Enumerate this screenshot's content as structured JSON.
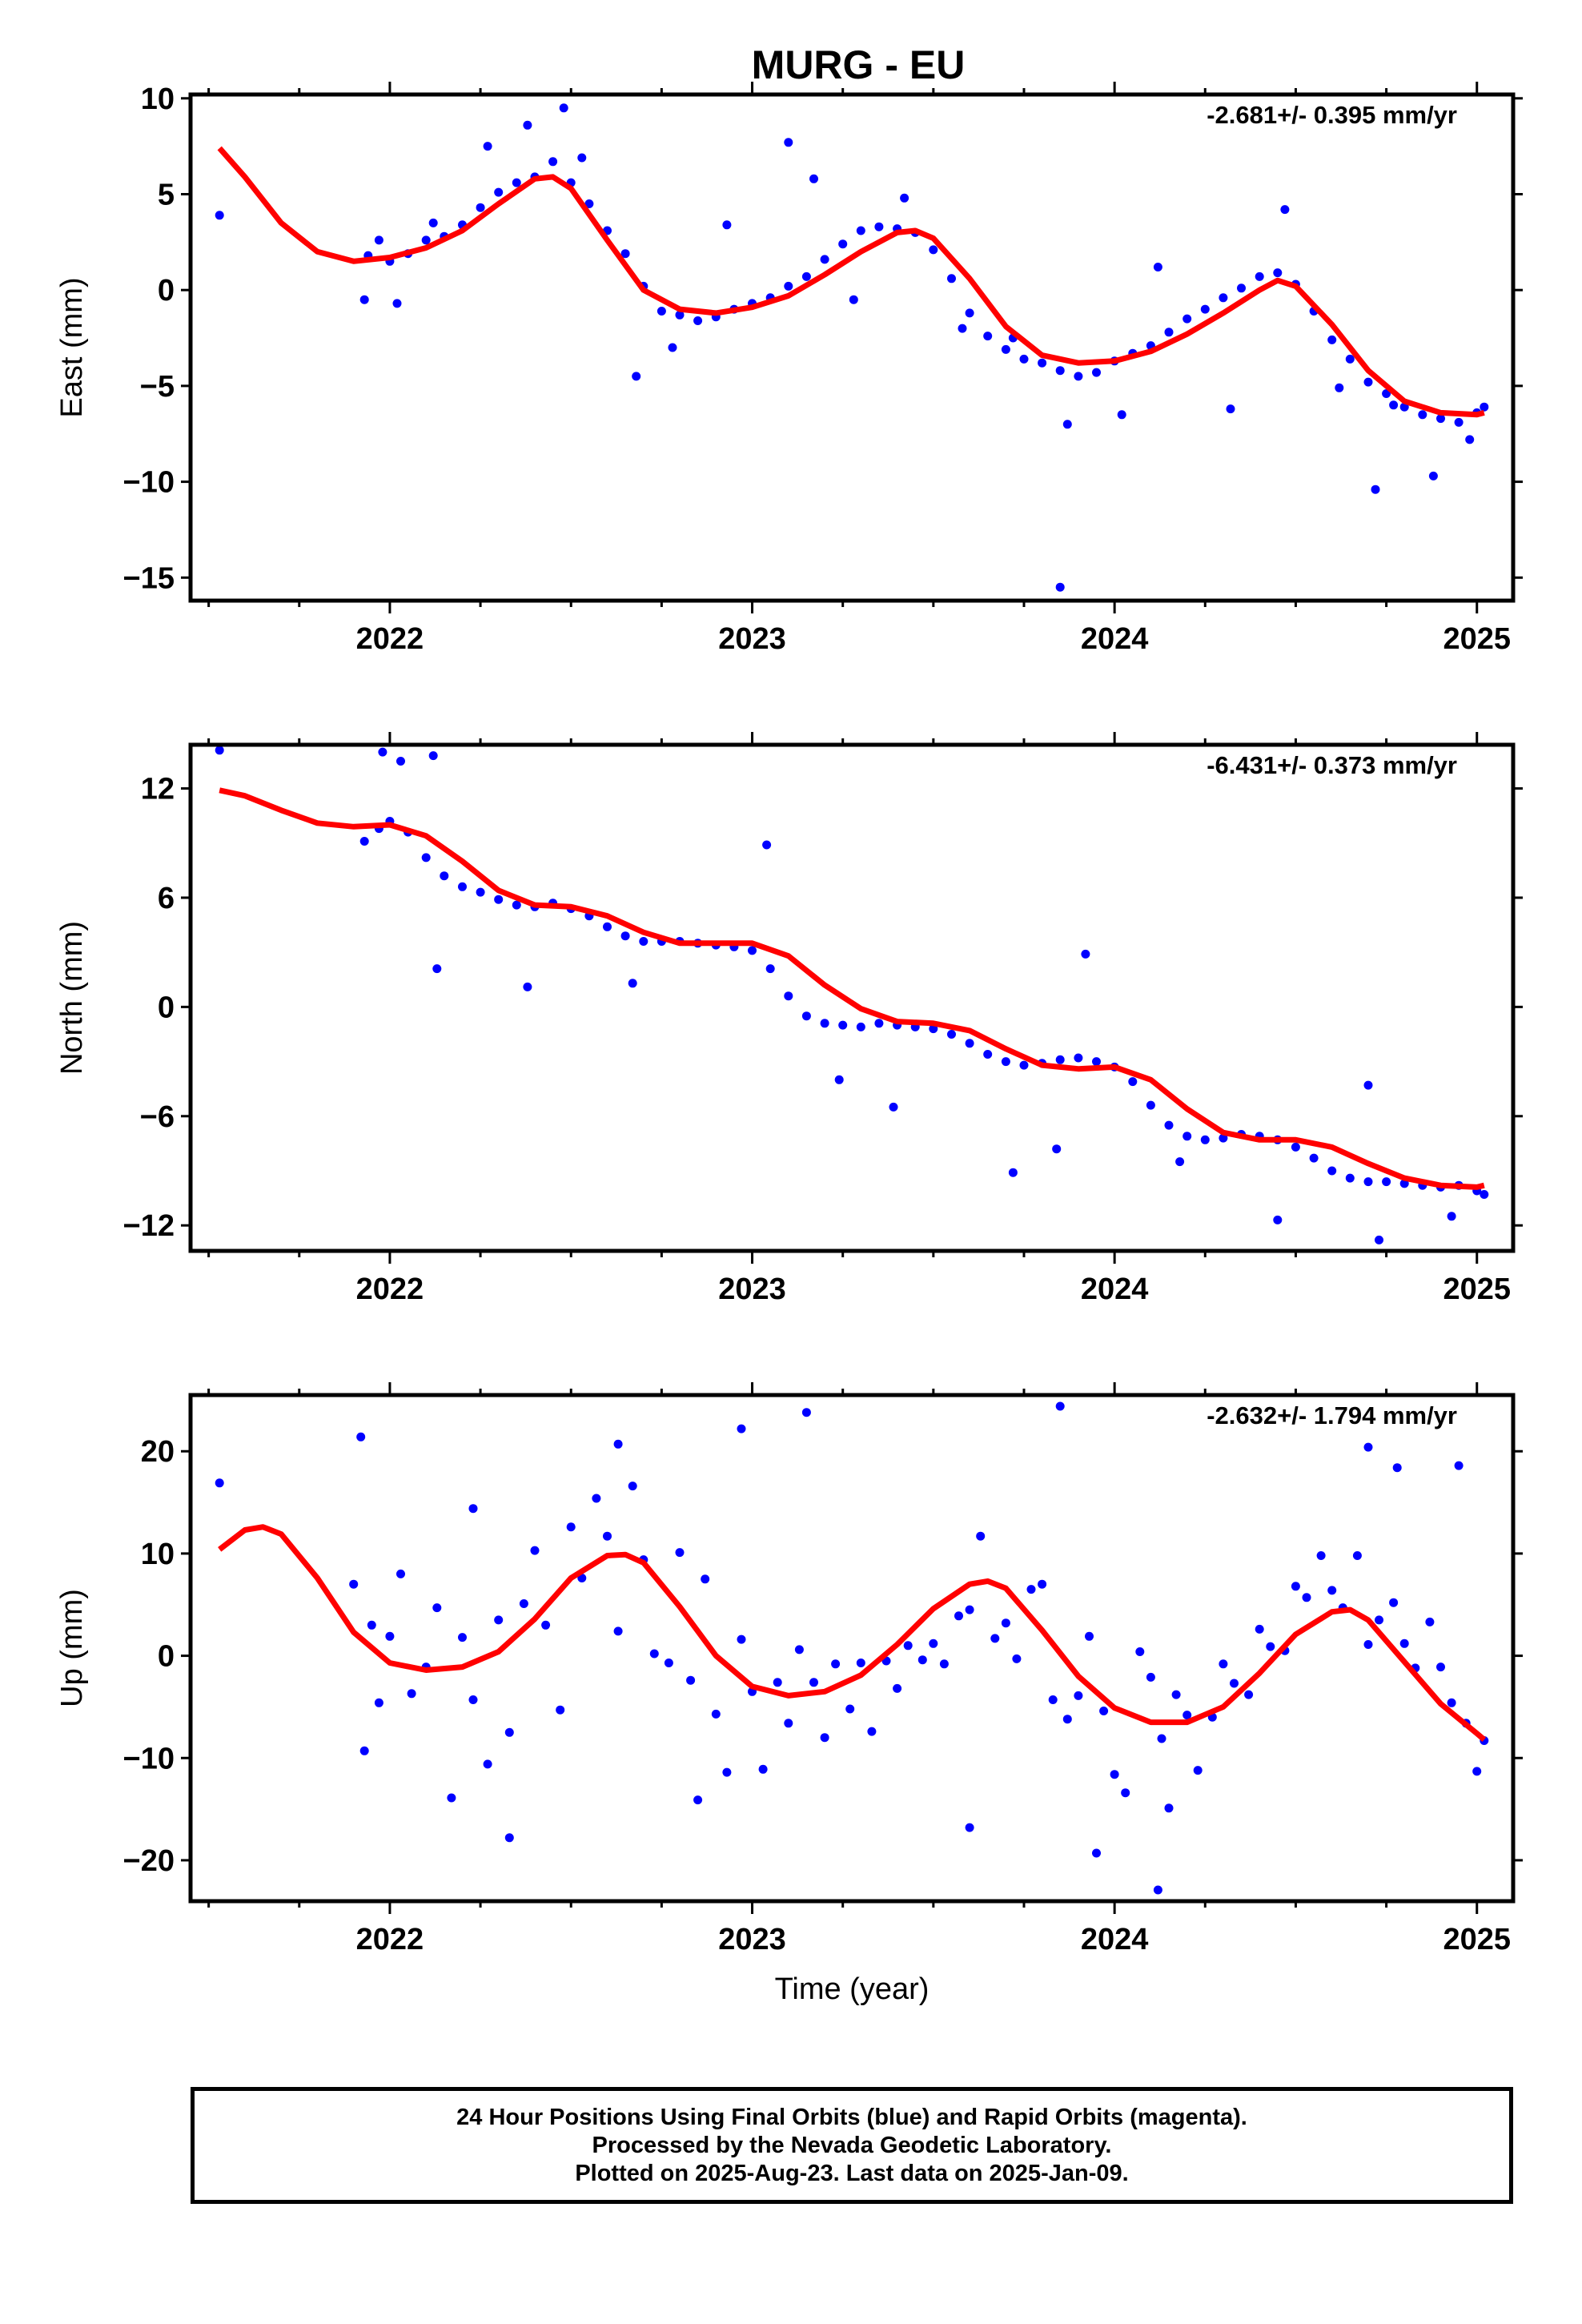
{
  "footer": {
    "line1": "24 Hour Positions Using Final Orbits (blue) and Rapid Orbits (magenta).",
    "line2": "Processed by the Nevada Geodetic Laboratory.",
    "line3": "Plotted on 2025-Aug-23. Last data on 2025-Jan-09."
  },
  "colors": {
    "points": "#0000ff",
    "fit": "#ff0000",
    "frame": "#000000"
  },
  "chart_data": [
    {
      "type": "scatter",
      "title": "MURG - EU",
      "xlabel": "",
      "ylabel": "East (mm)",
      "rate": "-2.681+/- 0.395 mm/yr",
      "xlim": [
        2021.45,
        2025.1
      ],
      "ylim": [
        -16.2,
        10.2
      ],
      "xticks": [
        2022,
        2023,
        2024,
        2025
      ],
      "xtick_labels": [
        "2022",
        "2023",
        "2024",
        "2025"
      ],
      "yticks": [
        10,
        5,
        0,
        -5,
        -10,
        -15
      ],
      "ytick_labels": [
        "10",
        "5",
        "0",
        "−5",
        "−10",
        "−15"
      ],
      "series": [
        {
          "kind": "points",
          "x": [
            2021.53,
            2021.94,
            2021.97,
            2022.0,
            2022.05,
            2022.1,
            2022.15,
            2022.2,
            2022.25,
            2022.3,
            2022.35,
            2022.4,
            2022.45,
            2022.5,
            2022.55,
            2022.6,
            2022.65,
            2022.7,
            2022.75,
            2022.8,
            2022.85,
            2022.9,
            2022.95,
            2023.0,
            2023.05,
            2023.1,
            2023.15,
            2023.2,
            2023.25,
            2023.3,
            2023.35,
            2023.4,
            2023.45,
            2023.5,
            2023.55,
            2023.6,
            2023.65,
            2023.7,
            2023.75,
            2023.8,
            2023.85,
            2023.9,
            2023.95,
            2024.0,
            2024.05,
            2024.1,
            2024.15,
            2024.2,
            2024.25,
            2024.3,
            2024.35,
            2024.4,
            2024.45,
            2024.5,
            2024.55,
            2024.6,
            2024.65,
            2024.7,
            2024.75,
            2024.8,
            2024.85,
            2024.9,
            2024.95,
            2025.0,
            2025.02,
            2021.93,
            2022.02,
            2022.12,
            2022.27,
            2022.38,
            2022.48,
            2022.53,
            2022.68,
            2022.78,
            2022.93,
            2023.1,
            2023.17,
            2023.28,
            2023.42,
            2023.58,
            2023.72,
            2023.85,
            2023.87,
            2024.02,
            2024.12,
            2024.32,
            2024.47,
            2024.62,
            2024.72,
            2024.77,
            2024.88,
            2024.98
          ],
          "y": [
            3.9,
            1.8,
            2.6,
            1.5,
            1.9,
            2.6,
            2.8,
            3.4,
            4.3,
            5.1,
            5.6,
            5.9,
            6.7,
            5.6,
            4.5,
            3.1,
            1.9,
            0.2,
            -1.1,
            -1.3,
            -1.6,
            -1.4,
            -1.0,
            -0.7,
            -0.4,
            0.2,
            0.7,
            1.6,
            2.4,
            3.1,
            3.3,
            3.2,
            3.0,
            2.1,
            0.6,
            -1.2,
            -2.4,
            -3.1,
            -3.6,
            -3.8,
            -4.2,
            -4.5,
            -4.3,
            -3.7,
            -3.3,
            -2.9,
            -2.2,
            -1.5,
            -1.0,
            -0.4,
            0.1,
            0.7,
            0.9,
            0.3,
            -1.1,
            -2.6,
            -3.6,
            -4.8,
            -5.4,
            -6.1,
            -6.5,
            -6.7,
            -6.9,
            -6.4,
            -6.1,
            -0.5,
            -0.7,
            3.5,
            7.5,
            8.6,
            9.5,
            6.9,
            -4.5,
            -3.0,
            3.4,
            7.7,
            5.8,
            -0.5,
            4.8,
            -2.0,
            -2.5,
            -15.5,
            -7.0,
            -6.5,
            1.2,
            -6.2,
            4.2,
            -5.1,
            -10.4,
            -6.0,
            -9.7,
            -7.8
          ]
        },
        {
          "kind": "fit",
          "x": [
            2021.53,
            2021.6,
            2021.7,
            2021.8,
            2021.9,
            2022.0,
            2022.1,
            2022.2,
            2022.3,
            2022.4,
            2022.45,
            2022.5,
            2022.6,
            2022.7,
            2022.8,
            2022.9,
            2023.0,
            2023.1,
            2023.2,
            2023.3,
            2023.4,
            2023.45,
            2023.5,
            2023.6,
            2023.7,
            2023.8,
            2023.9,
            2024.0,
            2024.1,
            2024.2,
            2024.3,
            2024.4,
            2024.45,
            2024.5,
            2024.6,
            2024.7,
            2024.8,
            2024.9,
            2025.0,
            2025.02
          ],
          "y": [
            7.4,
            5.9,
            3.5,
            2.0,
            1.5,
            1.7,
            2.2,
            3.1,
            4.5,
            5.8,
            5.9,
            5.3,
            2.6,
            0.0,
            -1.0,
            -1.2,
            -0.9,
            -0.3,
            0.8,
            2.0,
            3.0,
            3.1,
            2.7,
            0.6,
            -1.9,
            -3.4,
            -3.8,
            -3.7,
            -3.2,
            -2.3,
            -1.2,
            0.0,
            0.5,
            0.2,
            -1.8,
            -4.2,
            -5.8,
            -6.4,
            -6.5,
            -6.4
          ]
        }
      ]
    },
    {
      "type": "scatter",
      "title": "",
      "xlabel": "",
      "ylabel": "North (mm)",
      "rate": "-6.431+/- 0.373 mm/yr",
      "xlim": [
        2021.45,
        2025.1
      ],
      "ylim": [
        -13.4,
        14.4
      ],
      "xticks": [
        2022,
        2023,
        2024,
        2025
      ],
      "xtick_labels": [
        "2022",
        "2023",
        "2024",
        "2025"
      ],
      "yticks": [
        12,
        6,
        0,
        -6,
        -12
      ],
      "ytick_labels": [
        "12",
        "6",
        "0",
        "−6",
        "−12"
      ],
      "series": [
        {
          "kind": "points",
          "x": [
            2021.53,
            2021.93,
            2021.97,
            2022.0,
            2022.05,
            2022.1,
            2022.15,
            2022.2,
            2022.25,
            2022.3,
            2022.35,
            2022.4,
            2022.45,
            2022.5,
            2022.55,
            2022.6,
            2022.65,
            2022.7,
            2022.75,
            2022.8,
            2022.85,
            2022.9,
            2022.95,
            2023.0,
            2023.05,
            2023.1,
            2023.15,
            2023.2,
            2023.25,
            2023.3,
            2023.35,
            2023.4,
            2023.45,
            2023.5,
            2023.55,
            2023.6,
            2023.65,
            2023.7,
            2023.75,
            2023.8,
            2023.85,
            2023.9,
            2023.95,
            2024.0,
            2024.05,
            2024.1,
            2024.15,
            2024.2,
            2024.25,
            2024.3,
            2024.35,
            2024.4,
            2024.45,
            2024.5,
            2024.55,
            2024.6,
            2024.65,
            2024.7,
            2024.75,
            2024.8,
            2024.85,
            2024.9,
            2024.95,
            2025.0,
            2025.02,
            2021.98,
            2022.03,
            2022.12,
            2022.13,
            2022.38,
            2022.67,
            2023.04,
            2023.24,
            2023.39,
            2023.72,
            2023.84,
            2023.92,
            2024.18,
            2024.45,
            2024.7,
            2024.73,
            2024.93
          ],
          "y": [
            14.1,
            9.1,
            9.8,
            10.2,
            9.6,
            8.2,
            7.2,
            6.6,
            6.3,
            5.9,
            5.6,
            5.5,
            5.7,
            5.4,
            5.0,
            4.4,
            3.9,
            3.6,
            3.6,
            3.6,
            3.5,
            3.4,
            3.3,
            3.1,
            2.1,
            0.6,
            -0.5,
            -0.9,
            -1.0,
            -1.1,
            -0.9,
            -1.0,
            -1.1,
            -1.2,
            -1.5,
            -2.0,
            -2.6,
            -3.0,
            -3.2,
            -3.1,
            -2.9,
            -2.8,
            -3.0,
            -3.3,
            -4.1,
            -5.4,
            -6.5,
            -7.1,
            -7.3,
            -7.2,
            -7.0,
            -7.1,
            -7.3,
            -7.7,
            -8.3,
            -9.0,
            -9.4,
            -9.6,
            -9.6,
            -9.7,
            -9.8,
            -9.9,
            -9.8,
            -10.1,
            -10.3,
            14.0,
            13.5,
            13.8,
            2.1,
            1.1,
            1.3,
            8.9,
            -4.0,
            -5.5,
            -9.1,
            -7.8,
            2.9,
            -8.5,
            -11.7,
            -4.3,
            -12.8,
            -11.5
          ]
        },
        {
          "kind": "fit",
          "x": [
            2021.53,
            2021.6,
            2021.7,
            2021.8,
            2021.9,
            2022.0,
            2022.1,
            2022.2,
            2022.3,
            2022.4,
            2022.5,
            2022.6,
            2022.7,
            2022.8,
            2022.9,
            2023.0,
            2023.1,
            2023.2,
            2023.3,
            2023.4,
            2023.5,
            2023.6,
            2023.7,
            2023.8,
            2023.9,
            2024.0,
            2024.1,
            2024.2,
            2024.3,
            2024.4,
            2024.5,
            2024.6,
            2024.7,
            2024.8,
            2024.9,
            2025.0,
            2025.02
          ],
          "y": [
            11.9,
            11.6,
            10.8,
            10.1,
            9.9,
            10.0,
            9.4,
            8.0,
            6.4,
            5.6,
            5.5,
            5.0,
            4.1,
            3.5,
            3.5,
            3.5,
            2.8,
            1.2,
            -0.1,
            -0.8,
            -0.9,
            -1.3,
            -2.3,
            -3.2,
            -3.4,
            -3.3,
            -4.0,
            -5.6,
            -6.9,
            -7.3,
            -7.3,
            -7.7,
            -8.6,
            -9.4,
            -9.8,
            -9.9,
            -9.8
          ]
        }
      ]
    },
    {
      "type": "scatter",
      "title": "",
      "xlabel": "Time (year)",
      "ylabel": "Up (mm)",
      "rate": "-2.632+/- 1.794 mm/yr",
      "xlim": [
        2021.45,
        2025.1
      ],
      "ylim": [
        -24,
        25.5
      ],
      "xticks": [
        2022,
        2023,
        2024,
        2025
      ],
      "xtick_labels": [
        "2022",
        "2023",
        "2024",
        "2025"
      ],
      "yticks": [
        20,
        10,
        0,
        -10,
        -20
      ],
      "ytick_labels": [
        "20",
        "10",
        "0",
        "−10",
        "−20"
      ],
      "series": [
        {
          "kind": "points",
          "x": [
            2021.53,
            2021.9,
            2021.93,
            2021.95,
            2021.97,
            2022.0,
            2022.03,
            2022.06,
            2022.1,
            2022.13,
            2022.17,
            2022.2,
            2022.23,
            2022.27,
            2022.3,
            2022.33,
            2022.37,
            2022.4,
            2022.43,
            2022.47,
            2022.5,
            2022.53,
            2022.57,
            2022.6,
            2022.63,
            2022.67,
            2022.7,
            2022.73,
            2022.77,
            2022.8,
            2022.83,
            2022.87,
            2022.9,
            2022.93,
            2022.97,
            2023.0,
            2023.03,
            2023.07,
            2023.1,
            2023.13,
            2023.17,
            2023.2,
            2023.23,
            2023.27,
            2023.3,
            2023.33,
            2023.37,
            2023.4,
            2023.43,
            2023.47,
            2023.5,
            2023.53,
            2023.57,
            2023.6,
            2023.63,
            2023.67,
            2023.7,
            2023.73,
            2023.77,
            2023.8,
            2023.83,
            2023.87,
            2023.9,
            2023.93,
            2023.97,
            2024.0,
            2024.03,
            2024.07,
            2024.1,
            2024.13,
            2024.17,
            2024.2,
            2024.23,
            2024.27,
            2024.3,
            2024.33,
            2024.37,
            2024.4,
            2024.43,
            2024.47,
            2024.5,
            2024.53,
            2024.57,
            2024.6,
            2024.63,
            2024.67,
            2024.7,
            2024.73,
            2024.77,
            2024.8,
            2024.83,
            2024.87,
            2024.9,
            2024.93,
            2024.97,
            2025.0,
            2025.02,
            2021.92,
            2022.23,
            2022.33,
            2022.63,
            2022.85,
            2022.97,
            2023.15,
            2023.6,
            2023.85,
            2023.95,
            2024.12,
            2024.15,
            2024.7,
            2024.78,
            2024.95
          ],
          "y": [
            16.9,
            7.0,
            -9.3,
            3.0,
            -4.6,
            1.9,
            8.0,
            -3.7,
            -1.1,
            4.7,
            -13.9,
            1.8,
            -4.3,
            -10.6,
            3.5,
            -7.5,
            5.1,
            10.3,
            3.0,
            -5.3,
            12.6,
            7.6,
            15.4,
            11.7,
            2.4,
            16.6,
            9.4,
            0.2,
            -0.7,
            10.1,
            -2.4,
            7.5,
            -5.7,
            -11.4,
            1.6,
            -3.5,
            -11.1,
            -2.6,
            -6.6,
            0.6,
            -2.6,
            -8.0,
            -0.8,
            -5.2,
            -0.7,
            -7.4,
            -0.5,
            -3.2,
            1.0,
            -0.4,
            1.2,
            -0.8,
            3.9,
            4.5,
            11.7,
            1.7,
            3.2,
            -0.3,
            6.5,
            7.0,
            -4.3,
            -6.2,
            -3.9,
            1.9,
            -5.4,
            -11.6,
            -13.4,
            0.4,
            -2.1,
            -8.1,
            -3.8,
            -5.8,
            -11.2,
            -6.0,
            -0.8,
            -2.7,
            -3.8,
            2.6,
            0.9,
            0.5,
            6.8,
            5.7,
            9.8,
            6.4,
            4.7,
            9.8,
            1.1,
            3.5,
            5.2,
            1.2,
            -1.2,
            3.3,
            -1.1,
            -4.6,
            -6.6,
            -11.3,
            -8.3,
            21.4,
            14.4,
            -17.8,
            20.7,
            -14.1,
            22.2,
            23.8,
            -16.8,
            24.4,
            -19.3,
            -22.9,
            -14.9,
            20.4,
            18.4,
            18.6
          ]
        },
        {
          "kind": "fit",
          "x": [
            2021.53,
            2021.6,
            2021.65,
            2021.7,
            2021.8,
            2021.9,
            2022.0,
            2022.1,
            2022.2,
            2022.3,
            2022.4,
            2022.5,
            2022.6,
            2022.65,
            2022.7,
            2022.8,
            2022.9,
            2023.0,
            2023.1,
            2023.2,
            2023.3,
            2023.4,
            2023.5,
            2023.6,
            2023.65,
            2023.7,
            2023.8,
            2023.9,
            2024.0,
            2024.1,
            2024.2,
            2024.3,
            2024.4,
            2024.5,
            2024.6,
            2024.65,
            2024.7,
            2024.8,
            2024.9,
            2025.0,
            2025.02
          ],
          "y": [
            10.4,
            12.3,
            12.6,
            11.9,
            7.6,
            2.3,
            -0.7,
            -1.4,
            -1.1,
            0.4,
            3.6,
            7.6,
            9.8,
            9.9,
            9.1,
            4.8,
            0.0,
            -3.0,
            -3.9,
            -3.5,
            -1.9,
            1.1,
            4.6,
            7.0,
            7.3,
            6.6,
            2.5,
            -2.0,
            -5.1,
            -6.5,
            -6.5,
            -5.0,
            -1.7,
            2.1,
            4.3,
            4.5,
            3.5,
            -0.6,
            -4.7,
            -7.6,
            -8.2
          ]
        }
      ]
    }
  ]
}
